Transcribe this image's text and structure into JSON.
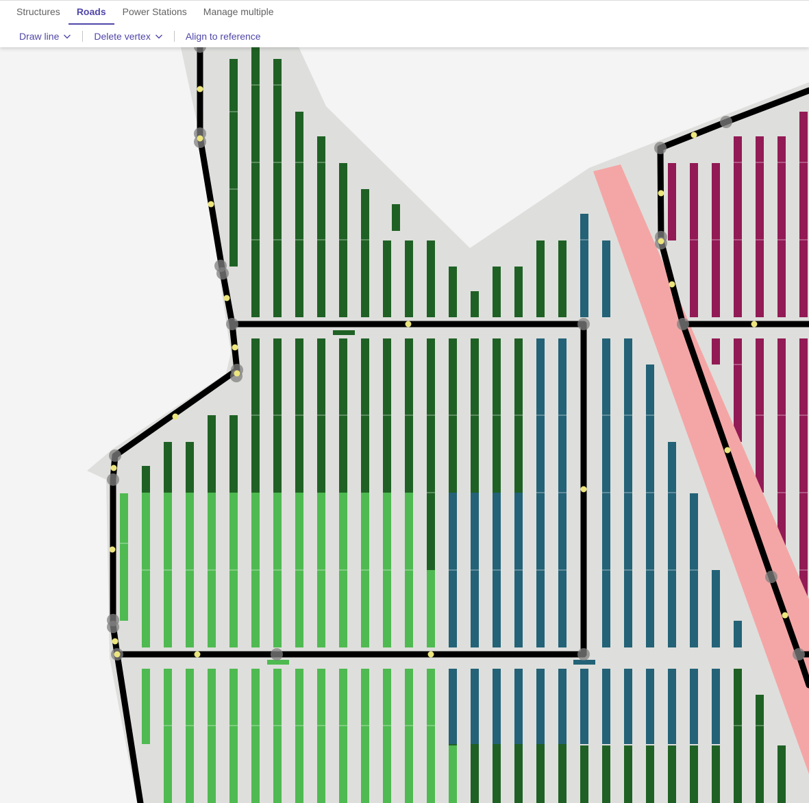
{
  "tabs": [
    {
      "label": "Structures",
      "active": false
    },
    {
      "label": "Roads",
      "active": true
    },
    {
      "label": "Power Stations",
      "active": false
    },
    {
      "label": "Manage multiple",
      "active": false
    }
  ],
  "toolbar": {
    "draw_line_label": "Draw line",
    "draw_line_icon": "chevron-down-icon",
    "delete_vertex_label": "Delete vertex",
    "delete_vertex_icon": "chevron-down-icon",
    "align_label": "Align to reference"
  },
  "map": {
    "site_color": "#dedfdc",
    "road_color": "#000000",
    "vertex_color": "#808080",
    "midpoint_color": "#ece57e",
    "easement_color": "#f4a6a6",
    "block_colors": {
      "dark_green": "#1f6124",
      "light_green": "#4fba51",
      "teal": "#236277",
      "magenta": "#921a55"
    }
  }
}
